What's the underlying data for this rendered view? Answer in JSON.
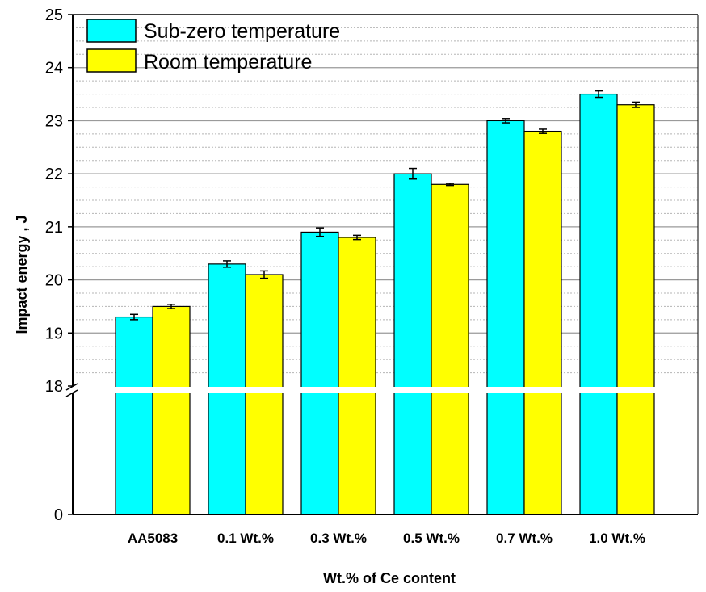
{
  "chart_data": {
    "type": "bar",
    "xlabel": "Wt.% of Ce content",
    "ylabel": "Impact energy , J",
    "categories": [
      "AA5083",
      "0.1 Wt.%",
      "0.3 Wt.%",
      "0.5 Wt.%",
      "0.7 Wt.%",
      "1.0 Wt.%"
    ],
    "series": [
      {
        "name": "Sub-zero temperature",
        "color": "#00FFFF",
        "values": [
          19.3,
          20.3,
          20.9,
          22.0,
          23.0,
          23.5
        ],
        "errors": [
          0.05,
          0.06,
          0.08,
          0.1,
          0.04,
          0.06
        ]
      },
      {
        "name": "Room temperature",
        "color": "#FFFF00",
        "values": [
          19.5,
          20.1,
          20.8,
          21.8,
          22.8,
          23.3
        ],
        "errors": [
          0.04,
          0.07,
          0.04,
          0.02,
          0.04,
          0.05
        ]
      }
    ],
    "y_axis": {
      "broken": true,
      "break_between": [
        0,
        18
      ],
      "lower_ticks": [
        0
      ],
      "upper_ticks": [
        18,
        19,
        20,
        21,
        22,
        23,
        24,
        25
      ],
      "upper_range": [
        18,
        25
      ]
    },
    "grid": true,
    "legend_position": "top-left"
  }
}
